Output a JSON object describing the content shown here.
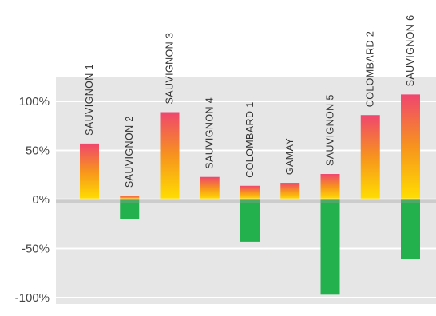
{
  "chart_data": {
    "type": "bar",
    "categories": [
      "SAUVIGNON 1",
      "SAUVIGNON 2",
      "SAUVIGNON 3",
      "SAUVIGNON 4",
      "COLOMBARD 1",
      "GAMAY",
      "SAUVIGNON 5",
      "COLOMBARD 2",
      "SAUVIGNON 6"
    ],
    "series": [
      {
        "values": [
          57,
          4,
          89,
          23,
          14,
          17,
          26,
          86,
          107
        ]
      },
      {
        "values": [
          0,
          -20,
          0,
          0,
          -43,
          0,
          -97,
          0,
          -61
        ]
      }
    ],
    "y_tick_labels": [
      "100%",
      "50%",
      "0%",
      "-50%",
      "-100%"
    ],
    "y_ticks": [
      100,
      50,
      0,
      -50,
      -100
    ],
    "ylim": [
      -102,
      125
    ],
    "grid": true,
    "colors": {
      "plot_background": "#e6e6e6",
      "gridline": "#ffffff",
      "positive_top": "#f0466e",
      "positive_mid": "#f7941d",
      "positive_bottom": "#ffdf00",
      "negative": "#22b14c"
    }
  }
}
